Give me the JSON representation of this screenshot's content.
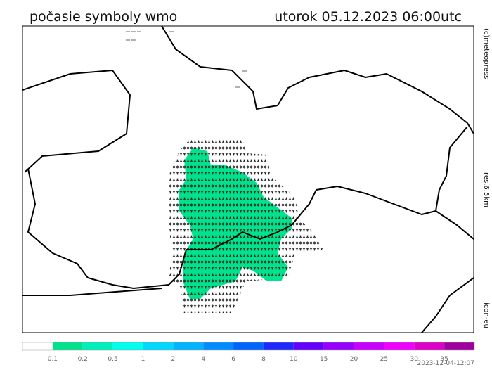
{
  "header": {
    "title": "počasie symboly wmo",
    "time": "utorok 05.12.2023 06:00utc"
  },
  "side": {
    "copyright": "(c)meteopress",
    "resolution": "res.6.5km",
    "model": "icon-eu"
  },
  "colorbar": {
    "ticks": [
      0.1,
      0.2,
      0.5,
      1,
      2,
      4,
      6,
      8,
      10,
      15,
      20,
      25,
      30,
      35
    ],
    "colors": [
      "#ffffff",
      "#00e38c",
      "#00f0bb",
      "#00ffee",
      "#00d9ff",
      "#00b4ff",
      "#008cff",
      "#0064ff",
      "#1e28ff",
      "#6400ff",
      "#9600ff",
      "#c800ff",
      "#f000ff",
      "#dc00c8",
      "#a0009e"
    ]
  },
  "footer": {
    "timestamp": "2023-12-04-12:07"
  }
}
